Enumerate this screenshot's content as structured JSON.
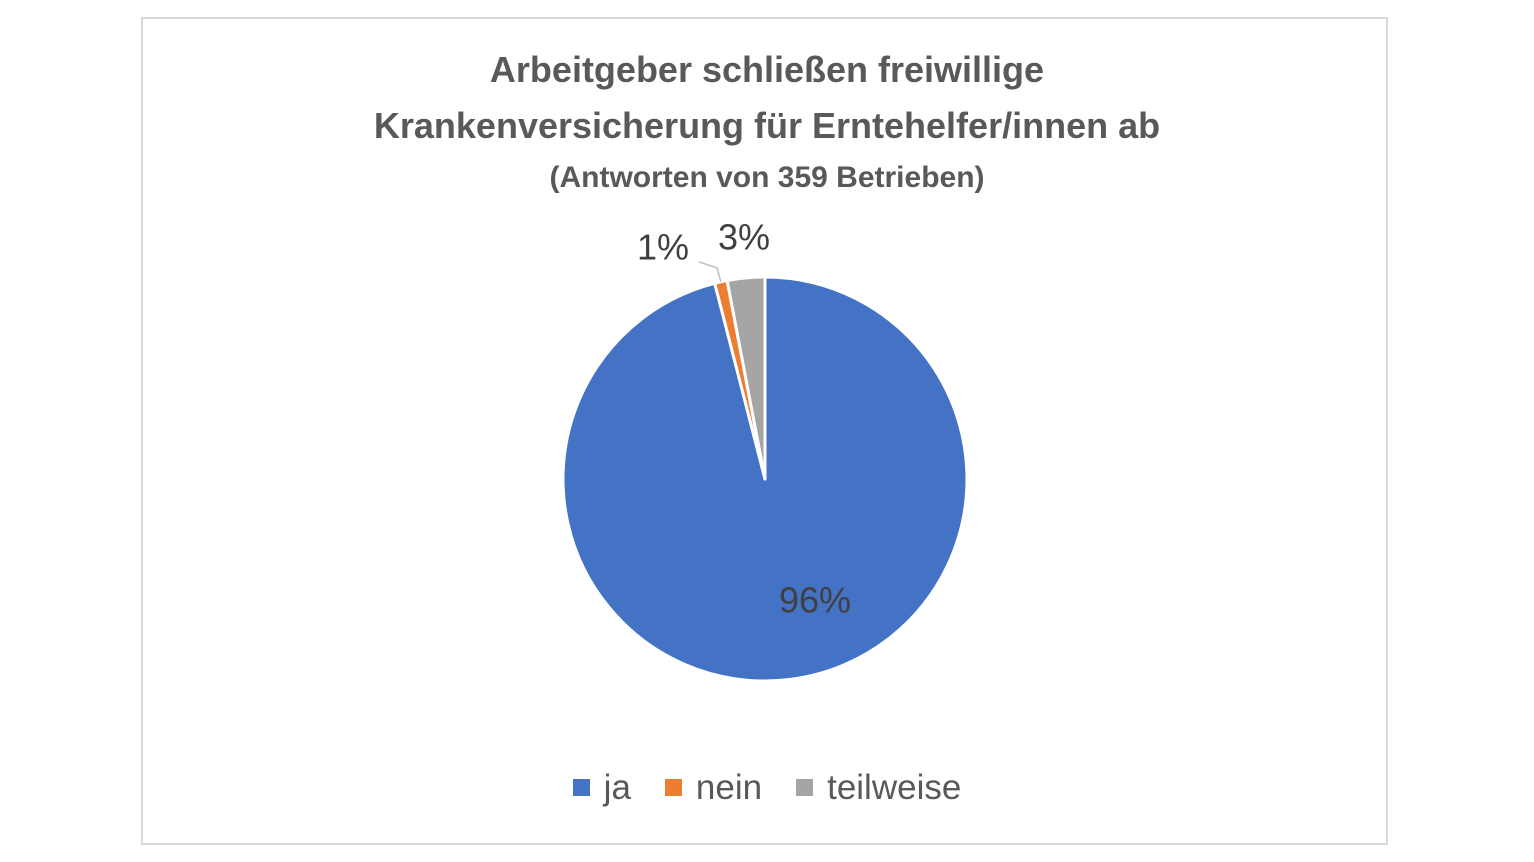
{
  "chart_data": {
    "type": "pie",
    "title_line1": "Arbeitgeber schließen freiwillige",
    "title_line2": "Krankenversicherung für Erntehelfer/innen ab",
    "subtitle": "(Antworten von 359 Betrieben)",
    "slices": [
      {
        "name": "ja",
        "value": 96,
        "label": "96%",
        "color": "#4472c4"
      },
      {
        "name": "nein",
        "value": 1,
        "label": "1%",
        "color": "#ed7d31"
      },
      {
        "name": "teilweise",
        "value": 3,
        "label": "3%",
        "color": "#a5a5a5"
      }
    ],
    "legend_position": "bottom",
    "start_angle": "12 o'clock, clockwise"
  }
}
